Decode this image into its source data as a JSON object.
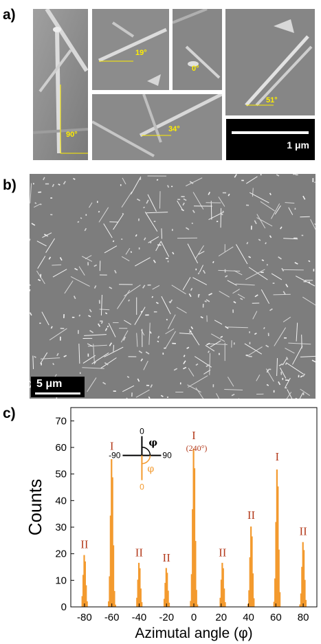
{
  "panels": {
    "a": {
      "label": "a)",
      "angles": [
        "90°",
        "19°",
        "0°",
        "51°",
        "34°"
      ],
      "scale_bar": "1 μm"
    },
    "b": {
      "label": "b)",
      "scale_bar": "5 μm"
    },
    "c": {
      "label": "c)"
    }
  },
  "colors": {
    "histogram": "#f39a2e",
    "peak_label": "#b43c1e",
    "angle_text": "#ffee00",
    "sem_bg": "#8a8a8a"
  },
  "chart_data": {
    "type": "bar",
    "xlabel": "Azimutal angle (φ)",
    "ylabel": "Counts",
    "xlim": [
      -90,
      90
    ],
    "ylim": [
      0,
      75
    ],
    "xticks": [
      -80,
      -60,
      -40,
      -20,
      0,
      20,
      40,
      60,
      80
    ],
    "yticks": [
      0,
      10,
      20,
      30,
      40,
      50,
      60,
      70
    ],
    "peaks": [
      {
        "x": -80,
        "y": 20,
        "label": "II"
      },
      {
        "x": -60,
        "y": 57,
        "label": "I"
      },
      {
        "x": -40,
        "y": 17,
        "label": "II"
      },
      {
        "x": -20,
        "y": 15,
        "label": "II"
      },
      {
        "x": 0,
        "y": 61,
        "label": "I",
        "sublabel": "(240°)"
      },
      {
        "x": 21,
        "y": 17,
        "label": "II"
      },
      {
        "x": 42,
        "y": 31,
        "label": "II"
      },
      {
        "x": 61,
        "y": 53,
        "label": "I"
      },
      {
        "x": 80,
        "y": 25,
        "label": "II"
      }
    ],
    "inset": {
      "top": "0",
      "left": "-90",
      "right": "90",
      "bottom": "0",
      "phi": "φ"
    }
  }
}
